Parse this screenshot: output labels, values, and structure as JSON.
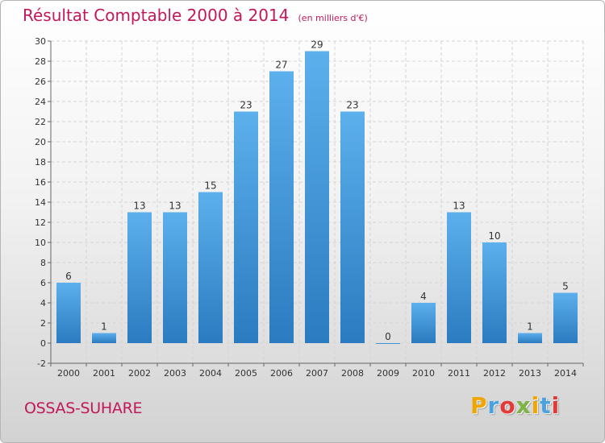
{
  "chart_data": {
    "type": "bar",
    "title": "Résultat Comptable 2000 à 2014",
    "unit_note": "(en milliers d'€)",
    "categories": [
      "2000",
      "2001",
      "2002",
      "2003",
      "2004",
      "2005",
      "2006",
      "2007",
      "2008",
      "2009",
      "2010",
      "2011",
      "2012",
      "2013",
      "2014"
    ],
    "values": [
      6,
      1,
      13,
      13,
      15,
      23,
      27,
      29,
      23,
      0,
      4,
      13,
      10,
      1,
      5
    ],
    "ylim": [
      -2,
      30
    ],
    "yticks": [
      -2,
      0,
      2,
      4,
      6,
      8,
      10,
      12,
      14,
      16,
      18,
      20,
      22,
      24,
      26,
      28,
      30
    ],
    "grid": true,
    "bar_color": "#4a9fe0"
  },
  "commune": "OSSAS-SUHARE",
  "brand": {
    "letters": [
      "P",
      "r",
      "o",
      "x",
      "i",
      "t",
      "i"
    ],
    "colors": [
      "#f0a500",
      "#4aa3df",
      "#e53935",
      "#7cb342",
      "#f0a500",
      "#4aa3df",
      "#e53935"
    ]
  },
  "colors": {
    "title": "#c2185b",
    "commune": "#c2185b"
  }
}
